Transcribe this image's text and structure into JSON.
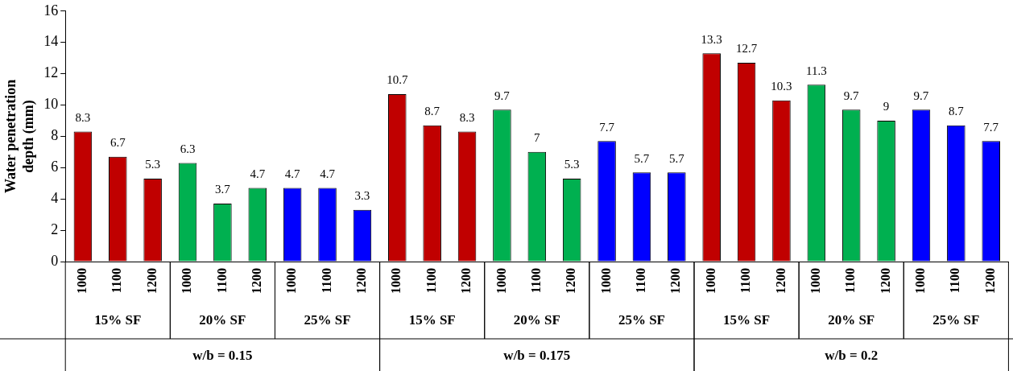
{
  "chart_data": {
    "type": "bar",
    "ylabel": "Water penetration depth (mm)",
    "categories": [
      "1000",
      "1100",
      "1200",
      "1000",
      "1100",
      "1200",
      "1000",
      "1100",
      "1200",
      "1000",
      "1100",
      "1200",
      "1000",
      "1100",
      "1200",
      "1000",
      "1100",
      "1200",
      "1000",
      "1100",
      "1200",
      "1000",
      "1100",
      "1200",
      "1000",
      "1100",
      "1200"
    ],
    "values": [
      8.3,
      6.7,
      5.3,
      6.3,
      3.7,
      4.7,
      4.7,
      4.7,
      3.3,
      10.7,
      8.7,
      8.3,
      9.7,
      7,
      5.3,
      7.7,
      5.7,
      5.7,
      13.3,
      12.7,
      10.3,
      11.3,
      9.7,
      9,
      9.7,
      8.7,
      7.7
    ],
    "colors": [
      "#c00000",
      "#c00000",
      "#c00000",
      "#00b050",
      "#00b050",
      "#00b050",
      "#0000ff",
      "#0000ff",
      "#0000ff",
      "#c00000",
      "#c00000",
      "#c00000",
      "#00b050",
      "#00b050",
      "#00b050",
      "#0000ff",
      "#0000ff",
      "#0000ff",
      "#c00000",
      "#c00000",
      "#c00000",
      "#00b050",
      "#00b050",
      "#00b050",
      "#0000ff",
      "#0000ff",
      "#0000ff"
    ],
    "ylim": [
      0,
      16
    ],
    "yticks": [
      0,
      2,
      4,
      6,
      8,
      10,
      12,
      14,
      16
    ],
    "grid": false,
    "legend": false,
    "data_labels": true,
    "annotations": [
      "15% SF",
      "20% SF",
      "25% SF",
      "15% SF",
      "20% SF",
      "25% SF",
      "15% SF",
      "20% SF",
      "25% SF",
      "w/b = 0.15",
      "w/b = 0.175",
      "w/b = 0.2"
    ]
  }
}
